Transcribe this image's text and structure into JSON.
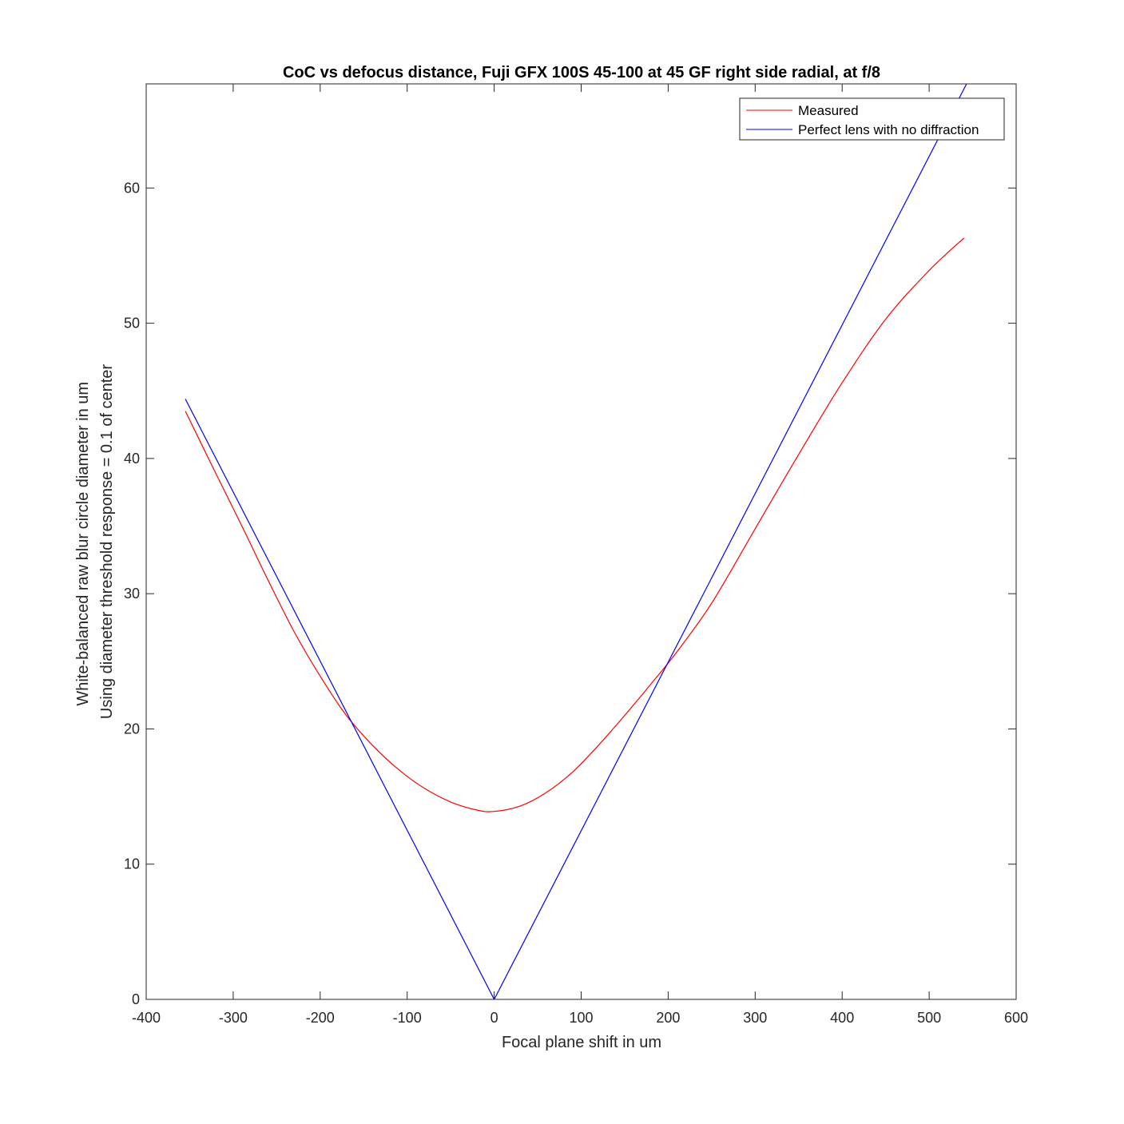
{
  "chart_data": {
    "type": "line",
    "title": "CoC vs defocus distance, Fuji GFX 100S 45-100 at 45 GF right side radial, at f/8",
    "xlabel": "Focal plane shift in um",
    "ylabel": [
      "White-balanced raw blur circle diameter in um",
      "Using diameter threshold response = 0.1 of center"
    ],
    "xlim": [
      -400,
      600
    ],
    "ylim": [
      0,
      67.7
    ],
    "xticks": [
      -400,
      -300,
      -200,
      -100,
      0,
      100,
      200,
      300,
      400,
      500,
      600
    ],
    "yticks": [
      0,
      10,
      20,
      30,
      40,
      50,
      60
    ],
    "grid": false,
    "legend_position": "top-right",
    "series": [
      {
        "name": "Measured",
        "color": "#ff0000",
        "x": [
          -355,
          -320,
          -290,
          -260,
          -230,
          -200,
          -170,
          -140,
          -110,
          -80,
          -50,
          -20,
          0,
          30,
          60,
          90,
          120,
          150,
          180,
          210,
          250,
          300,
          350,
          400,
          450,
          500,
          540
        ],
        "y": [
          43.5,
          38.9,
          35.0,
          31.0,
          27.2,
          23.9,
          21.0,
          18.8,
          17.0,
          15.6,
          14.6,
          14.0,
          13.9,
          14.3,
          15.3,
          16.8,
          18.8,
          21.0,
          23.3,
          25.7,
          29.3,
          34.8,
          40.3,
          45.6,
          50.3,
          53.9,
          56.3
        ]
      },
      {
        "name": "Perfect lens with no diffraction",
        "color": "#0000ff",
        "x": [
          -355,
          0,
          543
        ],
        "y": [
          44.4,
          0,
          67.7
        ]
      }
    ]
  }
}
